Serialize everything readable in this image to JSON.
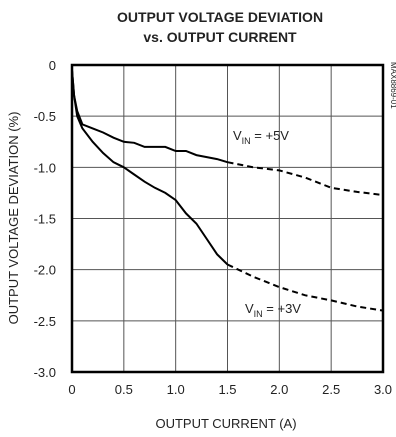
{
  "chart_data": {
    "type": "line",
    "title": [
      "OUTPUT VOLTAGE DEVIATION",
      "vs. OUTPUT CURRENT"
    ],
    "figure_id": "MAX8869-01",
    "x_label": "OUTPUT CURRENT (A)",
    "y_label": "OUTPUT VOLTAGE DEVIATION (%)",
    "x": [
      0,
      0.02,
      0.05,
      0.1,
      0.2,
      0.3,
      0.4,
      0.5,
      0.6,
      0.7,
      0.8,
      0.9,
      1.0,
      1.1,
      1.2,
      1.3,
      1.4,
      1.5,
      1.75,
      2.0,
      2.25,
      2.5,
      2.75,
      3.0
    ],
    "dashed_from": 1.5,
    "series": [
      {
        "label": {
          "text": "V",
          "subscript": "IN",
          "suffix": " = +5V"
        },
        "color": "#000000",
        "values": [
          -0.05,
          -0.3,
          -0.45,
          -0.58,
          -0.62,
          -0.66,
          -0.71,
          -0.75,
          -0.76,
          -0.8,
          -0.8,
          -0.8,
          -0.84,
          -0.84,
          -0.88,
          -0.9,
          -0.92,
          -0.95,
          -1.0,
          -1.03,
          -1.1,
          -1.2,
          -1.24,
          -1.27
        ]
      },
      {
        "label": {
          "text": "V",
          "subscript": "IN",
          "suffix": " = +3V"
        },
        "color": "#000000",
        "values": [
          -0.05,
          -0.3,
          -0.5,
          -0.62,
          -0.75,
          -0.86,
          -0.95,
          -1.0,
          -1.07,
          -1.14,
          -1.2,
          -1.25,
          -1.32,
          -1.45,
          -1.55,
          -1.7,
          -1.85,
          -1.95,
          -2.07,
          -2.17,
          -2.25,
          -2.3,
          -2.36,
          -2.4
        ]
      }
    ],
    "xlim": [
      0,
      3.0
    ],
    "xticks": [
      0,
      0.5,
      {
        "value": 1,
        "label": "1.0"
      },
      1.5,
      {
        "value": 2,
        "label": "2.0"
      },
      2.5,
      {
        "value": 3,
        "label": "3.0"
      }
    ],
    "ylim": [
      -3.0,
      0
    ],
    "yticks": [
      0,
      -0.5,
      {
        "value": -1,
        "label": "-1.0"
      },
      -1.5,
      {
        "value": -2,
        "label": "-2.0"
      },
      -2.5,
      {
        "value": -3,
        "label": "-3.0"
      }
    ],
    "grid": true
  }
}
